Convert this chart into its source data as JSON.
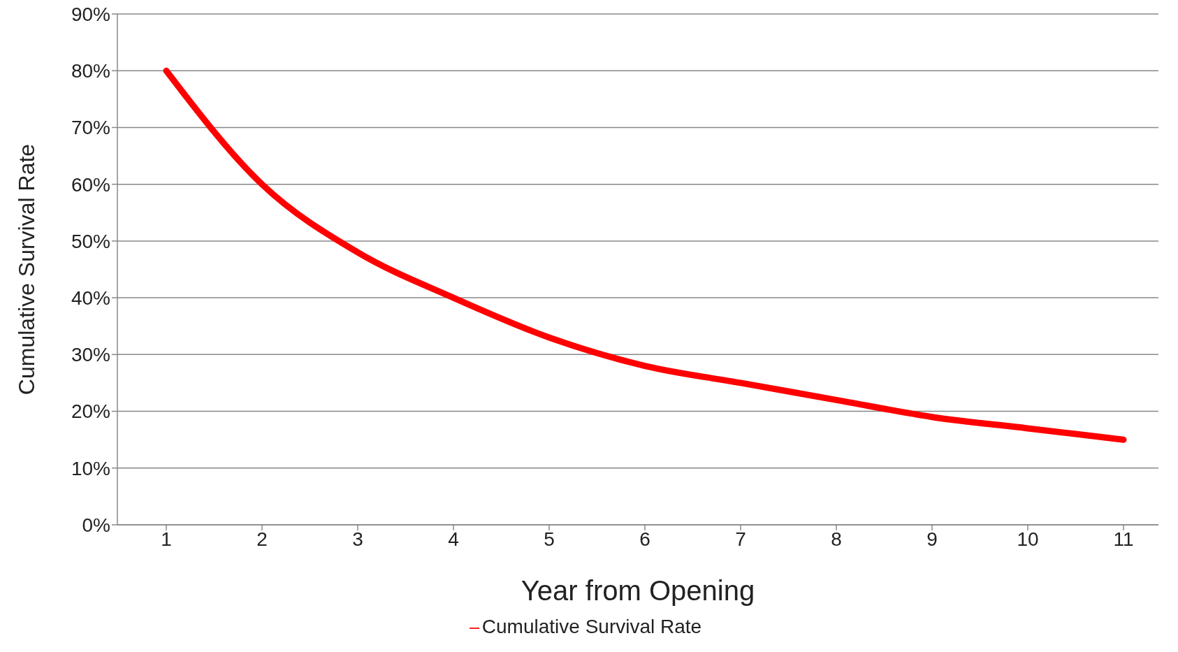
{
  "chart_data": {
    "type": "line",
    "xlabel": "Year from Opening",
    "ylabel": "Cumulative Survival Rate",
    "categories": [
      "1",
      "2",
      "3",
      "4",
      "5",
      "6",
      "7",
      "8",
      "9",
      "10",
      "11"
    ],
    "series": [
      {
        "name": "Cumulative Survival Rate",
        "color": "#ff0000",
        "values": [
          80,
          60,
          48,
          40,
          33,
          28,
          25,
          22,
          19,
          17,
          15
        ]
      }
    ],
    "ylim": [
      0,
      90
    ],
    "yticks": [
      {
        "value": 0,
        "label": "0%"
      },
      {
        "value": 10,
        "label": "10%"
      },
      {
        "value": 20,
        "label": "20%"
      },
      {
        "value": 30,
        "label": "30%"
      },
      {
        "value": 40,
        "label": "40%"
      },
      {
        "value": 50,
        "label": "50%"
      },
      {
        "value": 60,
        "label": "60%"
      },
      {
        "value": 70,
        "label": "70%"
      },
      {
        "value": 80,
        "label": "80%"
      },
      {
        "value": 90,
        "label": "90%"
      }
    ],
    "grid": "y",
    "legend": "bottom",
    "marker": "none",
    "line_style": "solid"
  }
}
